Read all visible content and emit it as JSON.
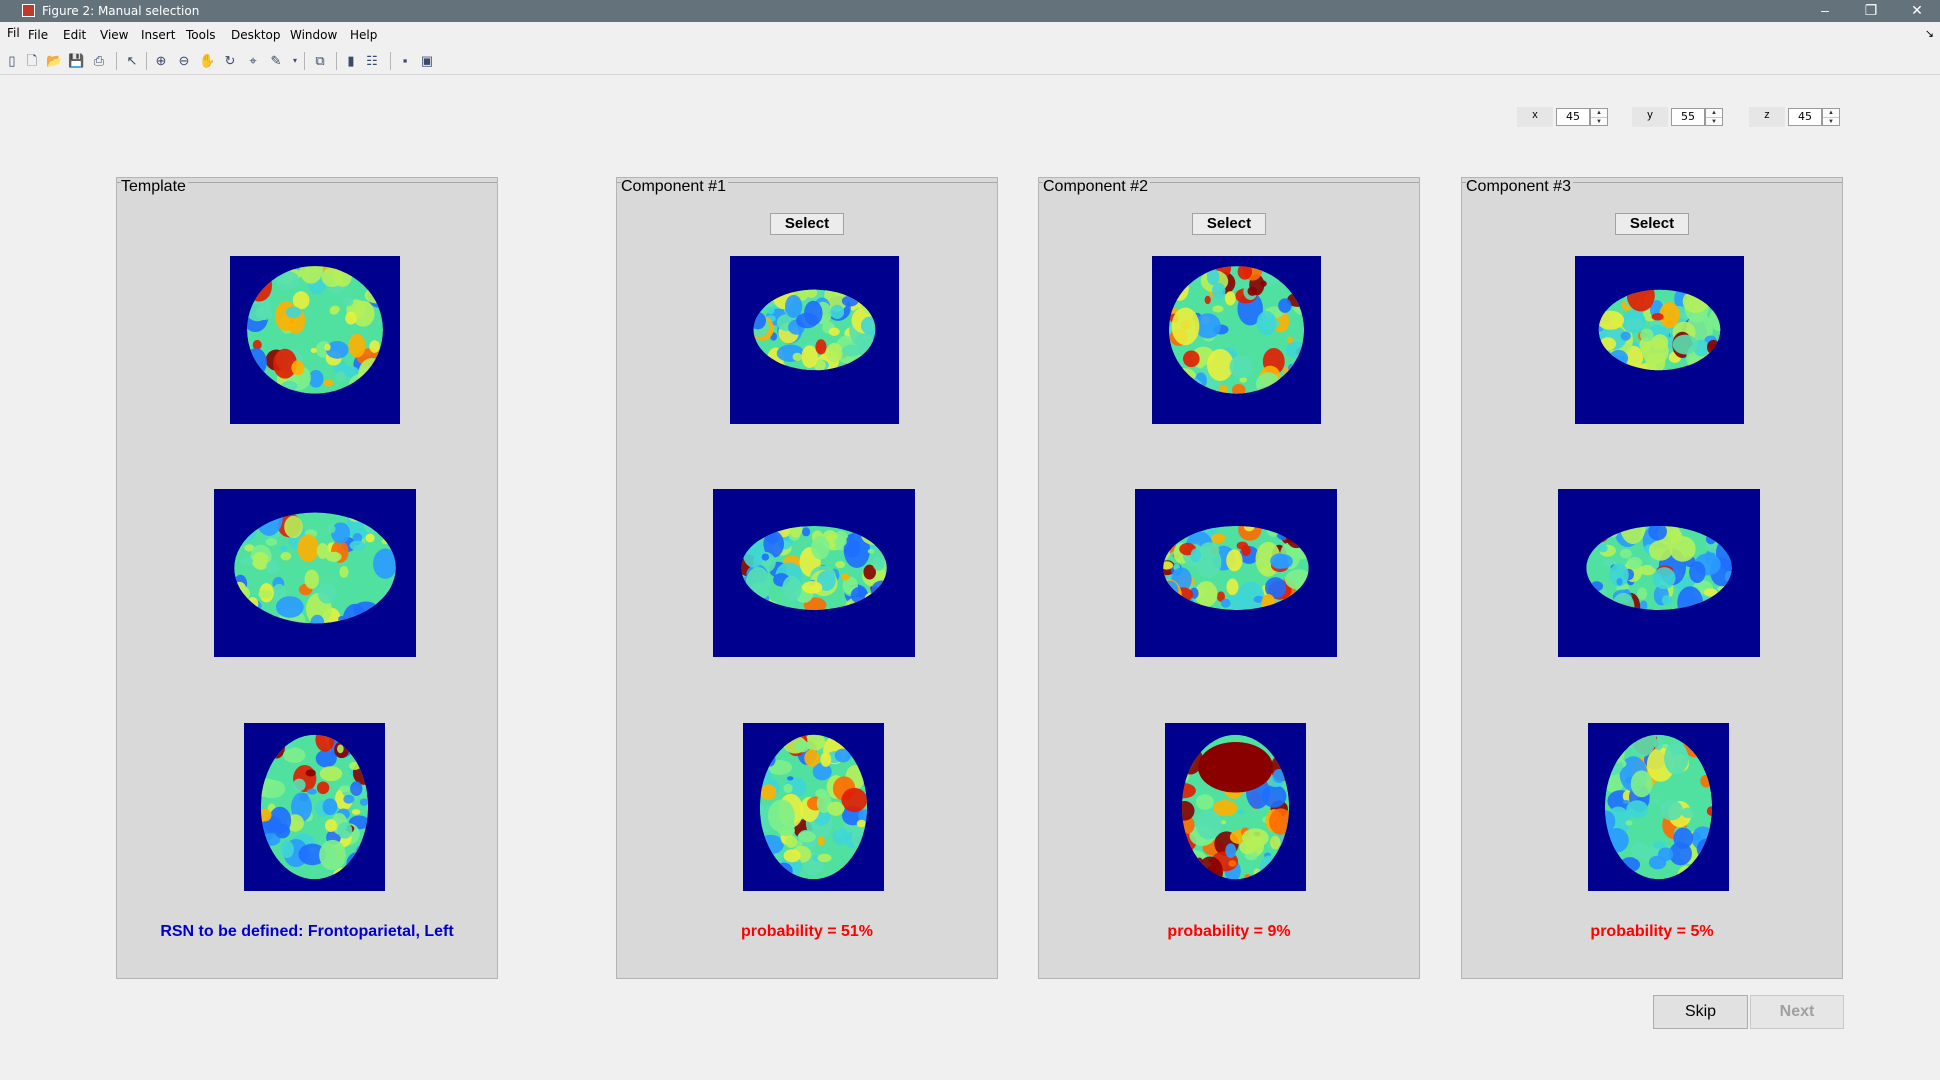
{
  "window": {
    "title": "Figure 2: Manual selection",
    "menubar_cut_label": "Fil",
    "controls": [
      "–",
      "❐",
      "✕"
    ]
  },
  "menu": [
    "File",
    "Edit",
    "View",
    "Insert",
    "Tools",
    "Desktop",
    "Window",
    "Help"
  ],
  "toolbar_icons": [
    "new-figure-icon",
    "new-icon",
    "open-icon",
    "save-icon",
    "print-icon",
    "pointer-icon",
    "zoom-in-icon",
    "zoom-out-icon",
    "pan-icon",
    "rotate-icon",
    "data-cursor-icon",
    "brush-icon",
    "link-plot-icon",
    "colorbar-icon",
    "legend-icon",
    "hide-plot-tools-icon",
    "show-plot-tools-icon"
  ],
  "coords": {
    "x": {
      "label": "x",
      "value": "45"
    },
    "y": {
      "label": "y",
      "value": "55"
    },
    "z": {
      "label": "z",
      "value": "45"
    }
  },
  "panels": [
    {
      "title": "Template",
      "caption": "RSN to be defined: Frontoparietal, Left",
      "caption_color": "#0000cc",
      "has_select": false
    },
    {
      "title": "Component #1",
      "caption": "probability = 51%",
      "caption_color": "#ff0000",
      "has_select": true
    },
    {
      "title": "Component #2",
      "caption": "probability = 9%",
      "caption_color": "#ff0000",
      "has_select": true
    },
    {
      "title": "Component #3",
      "caption": "probability = 5%",
      "caption_color": "#ff0000",
      "has_select": true
    }
  ],
  "select_label": "Select",
  "buttons": {
    "skip": "Skip",
    "next": "Next"
  },
  "colors": {
    "slice_bg": "#00008f",
    "brain_base": [
      "#50e0a0",
      "#3cc6d2",
      "#6ee66e"
    ]
  }
}
